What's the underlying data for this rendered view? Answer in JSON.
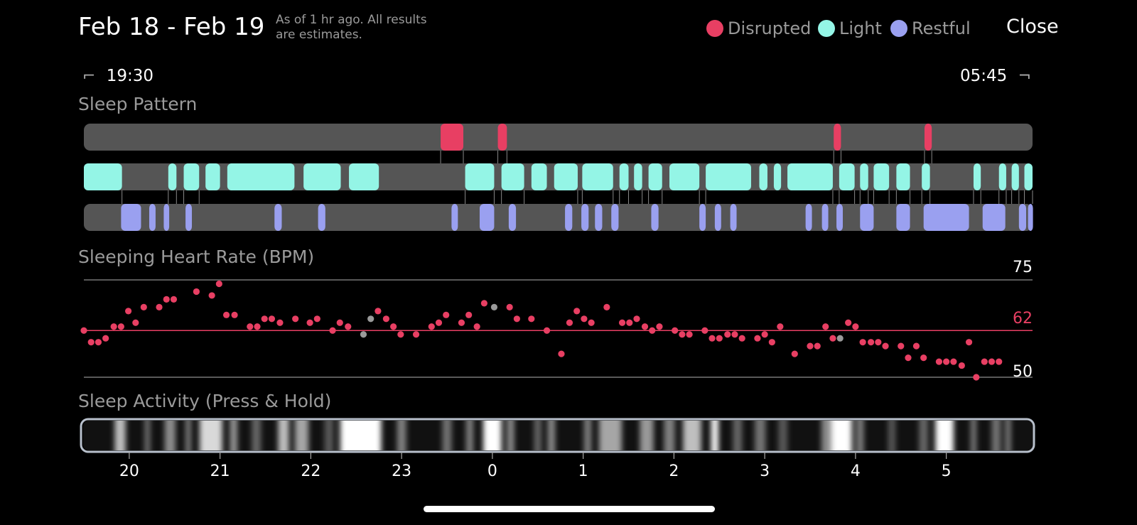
{
  "header": {
    "title": "Feb 18 - Feb 19",
    "subtitle_line1": "As of 1 hr ago. All results",
    "subtitle_line2": "are estimates.",
    "close_label": "Close"
  },
  "legend": [
    {
      "label": "Disrupted",
      "color": "#e83f63"
    },
    {
      "label": "Light",
      "color": "#94f5e6"
    },
    {
      "label": "Restful",
      "color": "#9aa0f0"
    }
  ],
  "range": {
    "start": "19:30",
    "end": "05:45"
  },
  "sections": {
    "sleep_pattern": "Sleep Pattern",
    "heart_rate": "Sleeping Heart Rate (BPM)",
    "activity": "Sleep Activity (Press & Hold)"
  },
  "colors": {
    "disrupted": "#e83f63",
    "light": "#94f5e6",
    "restful": "#9aa0f0",
    "track": "#5a5a5a",
    "missing": "#9a9a9a"
  },
  "sleep_pattern": {
    "disrupted": [
      [
        23.43,
        23.68
      ],
      [
        0.06,
        0.16
      ],
      [
        3.76,
        3.84
      ],
      [
        4.76,
        4.84
      ]
    ],
    "light": [
      [
        19.5,
        19.92
      ],
      [
        20.43,
        20.52
      ],
      [
        20.6,
        20.77
      ],
      [
        20.84,
        21.0
      ],
      [
        21.08,
        21.82
      ],
      [
        21.92,
        22.33
      ],
      [
        22.42,
        22.75
      ],
      [
        23.7,
        24.02
      ],
      [
        24.1,
        24.35
      ],
      [
        24.43,
        24.6
      ],
      [
        24.68,
        24.94
      ],
      [
        24.99,
        25.33
      ],
      [
        25.4,
        25.5
      ],
      [
        25.56,
        25.65
      ],
      [
        25.72,
        25.87
      ],
      [
        25.95,
        26.28
      ],
      [
        26.35,
        26.85
      ],
      [
        26.94,
        27.03
      ],
      [
        27.1,
        27.18
      ],
      [
        27.25,
        27.75
      ],
      [
        27.82,
        27.99
      ],
      [
        28.05,
        28.14
      ],
      [
        28.2,
        28.37
      ],
      [
        28.45,
        28.6
      ],
      [
        28.73,
        28.82
      ],
      [
        29.3,
        29.38
      ],
      [
        29.58,
        29.66
      ],
      [
        29.72,
        29.8
      ],
      [
        29.86,
        29.95
      ]
    ],
    "restful": [
      [
        19.91,
        20.13
      ],
      [
        20.22,
        20.29
      ],
      [
        20.38,
        20.44
      ],
      [
        20.62,
        20.69
      ],
      [
        21.6,
        21.68
      ],
      [
        22.08,
        22.16
      ],
      [
        23.55,
        23.62
      ],
      [
        23.86,
        24.02
      ],
      [
        24.18,
        24.26
      ],
      [
        24.8,
        24.88
      ],
      [
        24.98,
        25.06
      ],
      [
        25.13,
        25.21
      ],
      [
        25.31,
        25.39
      ],
      [
        25.75,
        25.83
      ],
      [
        26.28,
        26.35
      ],
      [
        26.45,
        26.52
      ],
      [
        26.62,
        26.69
      ],
      [
        27.45,
        27.52
      ],
      [
        27.63,
        27.7
      ],
      [
        27.79,
        27.86
      ],
      [
        28.05,
        28.2
      ],
      [
        28.45,
        28.6
      ],
      [
        28.75,
        29.25
      ],
      [
        29.4,
        29.65
      ],
      [
        29.8,
        29.88
      ],
      [
        29.9,
        29.95
      ]
    ]
  },
  "chart_data": {
    "type": "scatter",
    "title": "Sleeping Heart Rate (BPM)",
    "unit": "BPM",
    "ylim": [
      50,
      75
    ],
    "yticks": [
      "75",
      "62",
      "50"
    ],
    "average": 62,
    "x_ticks": [
      "20",
      "21",
      "22",
      "23",
      "0",
      "1",
      "2",
      "3",
      "4",
      "5"
    ],
    "points": [
      {
        "t": 19.5,
        "bpm": 62
      },
      {
        "t": 19.58,
        "bpm": 59
      },
      {
        "t": 19.66,
        "bpm": 59
      },
      {
        "t": 19.74,
        "bpm": 60
      },
      {
        "t": 19.83,
        "bpm": 63
      },
      {
        "t": 19.91,
        "bpm": 63
      },
      {
        "t": 19.99,
        "bpm": 67
      },
      {
        "t": 20.07,
        "bpm": 64
      },
      {
        "t": 20.16,
        "bpm": 68
      },
      {
        "t": 20.33,
        "bpm": 68
      },
      {
        "t": 20.41,
        "bpm": 70
      },
      {
        "t": 20.49,
        "bpm": 70
      },
      {
        "t": 20.74,
        "bpm": 72
      },
      {
        "t": 20.91,
        "bpm": 71
      },
      {
        "t": 20.99,
        "bpm": 74
      },
      {
        "t": 21.07,
        "bpm": 66
      },
      {
        "t": 21.16,
        "bpm": 66
      },
      {
        "t": 21.33,
        "bpm": 63
      },
      {
        "t": 21.41,
        "bpm": 63
      },
      {
        "t": 21.49,
        "bpm": 65
      },
      {
        "t": 21.57,
        "bpm": 65
      },
      {
        "t": 21.66,
        "bpm": 64
      },
      {
        "t": 21.83,
        "bpm": 65
      },
      {
        "t": 21.99,
        "bpm": 64
      },
      {
        "t": 22.07,
        "bpm": 65
      },
      {
        "t": 22.24,
        "bpm": 62
      },
      {
        "t": 22.32,
        "bpm": 64
      },
      {
        "t": 22.41,
        "bpm": 63
      },
      {
        "t": 22.58,
        "bpm": 61,
        "missing": true
      },
      {
        "t": 22.66,
        "bpm": 65,
        "missing": true
      },
      {
        "t": 22.74,
        "bpm": 67
      },
      {
        "t": 22.83,
        "bpm": 65
      },
      {
        "t": 22.91,
        "bpm": 63
      },
      {
        "t": 22.99,
        "bpm": 61
      },
      {
        "t": 23.16,
        "bpm": 61
      },
      {
        "t": 23.33,
        "bpm": 63
      },
      {
        "t": 23.41,
        "bpm": 64
      },
      {
        "t": 23.49,
        "bpm": 66
      },
      {
        "t": 23.66,
        "bpm": 64
      },
      {
        "t": 23.74,
        "bpm": 66
      },
      {
        "t": 23.83,
        "bpm": 63
      },
      {
        "t": 23.91,
        "bpm": 69
      },
      {
        "t": 24.02,
        "bpm": 68,
        "missing": true
      },
      {
        "t": 24.19,
        "bpm": 68
      },
      {
        "t": 24.27,
        "bpm": 65
      },
      {
        "t": 24.43,
        "bpm": 65
      },
      {
        "t": 24.6,
        "bpm": 62
      },
      {
        "t": 24.76,
        "bpm": 56
      },
      {
        "t": 24.85,
        "bpm": 64
      },
      {
        "t": 24.93,
        "bpm": 67
      },
      {
        "t": 25.01,
        "bpm": 65
      },
      {
        "t": 25.09,
        "bpm": 64
      },
      {
        "t": 25.26,
        "bpm": 68
      },
      {
        "t": 25.43,
        "bpm": 64
      },
      {
        "t": 25.51,
        "bpm": 64
      },
      {
        "t": 25.59,
        "bpm": 65
      },
      {
        "t": 25.68,
        "bpm": 63
      },
      {
        "t": 25.76,
        "bpm": 62
      },
      {
        "t": 25.84,
        "bpm": 63
      },
      {
        "t": 26.01,
        "bpm": 62
      },
      {
        "t": 26.09,
        "bpm": 61
      },
      {
        "t": 26.17,
        "bpm": 61
      },
      {
        "t": 26.34,
        "bpm": 62
      },
      {
        "t": 26.42,
        "bpm": 60
      },
      {
        "t": 26.5,
        "bpm": 60
      },
      {
        "t": 26.59,
        "bpm": 61
      },
      {
        "t": 26.67,
        "bpm": 61
      },
      {
        "t": 26.75,
        "bpm": 60
      },
      {
        "t": 26.92,
        "bpm": 60
      },
      {
        "t": 27.0,
        "bpm": 61
      },
      {
        "t": 27.08,
        "bpm": 59
      },
      {
        "t": 27.17,
        "bpm": 63
      },
      {
        "t": 27.33,
        "bpm": 56
      },
      {
        "t": 27.5,
        "bpm": 58
      },
      {
        "t": 27.58,
        "bpm": 58
      },
      {
        "t": 27.67,
        "bpm": 63
      },
      {
        "t": 27.75,
        "bpm": 60
      },
      {
        "t": 27.83,
        "bpm": 60,
        "missing": true
      },
      {
        "t": 27.92,
        "bpm": 64
      },
      {
        "t": 28.0,
        "bpm": 63
      },
      {
        "t": 28.08,
        "bpm": 59
      },
      {
        "t": 28.17,
        "bpm": 59
      },
      {
        "t": 28.25,
        "bpm": 59
      },
      {
        "t": 28.33,
        "bpm": 58
      },
      {
        "t": 28.5,
        "bpm": 58
      },
      {
        "t": 28.58,
        "bpm": 55
      },
      {
        "t": 28.67,
        "bpm": 58
      },
      {
        "t": 28.75,
        "bpm": 55
      },
      {
        "t": 28.92,
        "bpm": 54
      },
      {
        "t": 29.0,
        "bpm": 54
      },
      {
        "t": 29.08,
        "bpm": 54
      },
      {
        "t": 29.17,
        "bpm": 53
      },
      {
        "t": 29.25,
        "bpm": 59
      },
      {
        "t": 29.33,
        "bpm": 50
      },
      {
        "t": 29.42,
        "bpm": 54
      },
      {
        "t": 29.5,
        "bpm": 54
      },
      {
        "t": 29.58,
        "bpm": 54
      }
    ]
  },
  "activity": {
    "bands": [
      {
        "t": 19.9,
        "w": 0.12,
        "a": 0.75
      },
      {
        "t": 20.2,
        "w": 0.06,
        "a": 0.45
      },
      {
        "t": 20.45,
        "w": 0.12,
        "a": 0.55
      },
      {
        "t": 20.65,
        "w": 0.06,
        "a": 0.5
      },
      {
        "t": 20.9,
        "w": 0.25,
        "a": 0.85
      },
      {
        "t": 21.15,
        "w": 0.08,
        "a": 0.6
      },
      {
        "t": 21.4,
        "w": 0.1,
        "a": 0.4
      },
      {
        "t": 21.7,
        "w": 0.12,
        "a": 0.75
      },
      {
        "t": 21.9,
        "w": 0.15,
        "a": 0.65
      },
      {
        "t": 22.2,
        "w": 0.1,
        "a": 0.35
      },
      {
        "t": 22.55,
        "w": 0.45,
        "a": 1.0
      },
      {
        "t": 23.0,
        "w": 0.1,
        "a": 0.5
      },
      {
        "t": 23.5,
        "w": 0.1,
        "a": 0.45
      },
      {
        "t": 23.75,
        "w": 0.08,
        "a": 0.5
      },
      {
        "t": 24.0,
        "w": 0.2,
        "a": 1.0
      },
      {
        "t": 24.2,
        "w": 0.08,
        "a": 0.55
      },
      {
        "t": 24.5,
        "w": 0.08,
        "a": 0.4
      },
      {
        "t": 24.65,
        "w": 0.08,
        "a": 0.55
      },
      {
        "t": 25.05,
        "w": 0.08,
        "a": 0.5
      },
      {
        "t": 25.3,
        "w": 0.25,
        "a": 0.65
      },
      {
        "t": 25.7,
        "w": 0.15,
        "a": 0.6
      },
      {
        "t": 25.95,
        "w": 0.12,
        "a": 0.5
      },
      {
        "t": 26.2,
        "w": 0.2,
        "a": 0.75
      },
      {
        "t": 26.45,
        "w": 0.08,
        "a": 1.0
      },
      {
        "t": 26.7,
        "w": 0.1,
        "a": 0.4
      },
      {
        "t": 26.95,
        "w": 0.12,
        "a": 0.45
      },
      {
        "t": 27.2,
        "w": 0.1,
        "a": 0.35
      },
      {
        "t": 27.7,
        "w": 0.15,
        "a": 0.55
      },
      {
        "t": 27.85,
        "w": 0.22,
        "a": 1.0
      },
      {
        "t": 28.05,
        "w": 0.08,
        "a": 0.5
      },
      {
        "t": 28.4,
        "w": 0.08,
        "a": 0.35
      },
      {
        "t": 28.75,
        "w": 0.1,
        "a": 0.4
      },
      {
        "t": 28.98,
        "w": 0.2,
        "a": 1.0
      },
      {
        "t": 29.3,
        "w": 0.06,
        "a": 0.5
      },
      {
        "t": 29.55,
        "w": 0.1,
        "a": 0.45
      },
      {
        "t": 29.68,
        "w": 0.06,
        "a": 0.5
      }
    ]
  }
}
